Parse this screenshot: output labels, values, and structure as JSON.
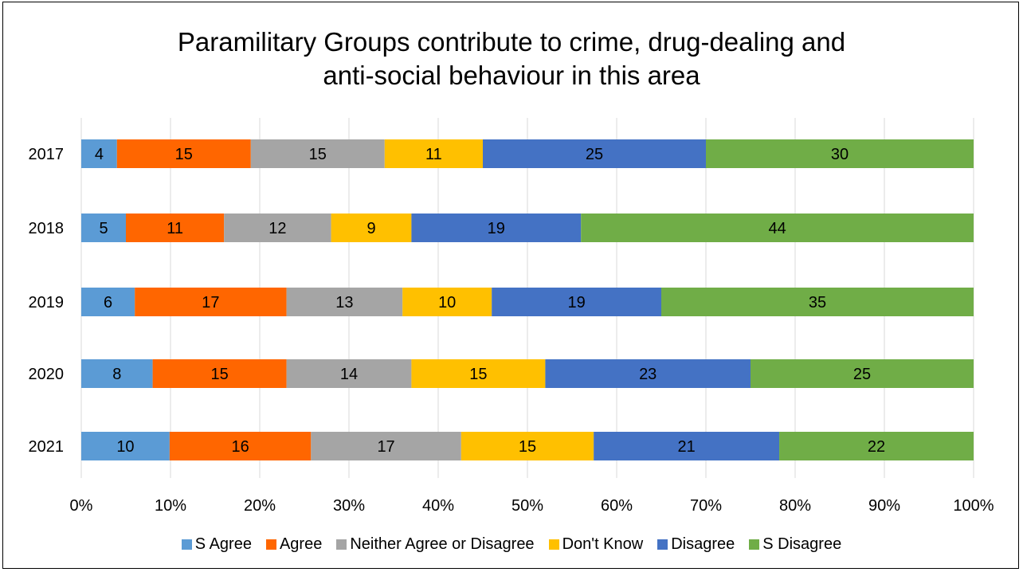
{
  "chart_data": {
    "type": "bar",
    "orientation": "horizontal",
    "stacked": "percent",
    "title": "Paramilitary Groups contribute to crime, drug-dealing and anti-social behaviour in this area",
    "title_lines": [
      "Paramilitary Groups contribute to crime, drug-dealing and",
      "anti-social behaviour in this area"
    ],
    "categories": [
      "2017",
      "2018",
      "2019",
      "2020",
      "2021"
    ],
    "series": [
      {
        "name": "S Agree",
        "color": "#5B9BD5",
        "values": [
          4,
          5,
          6,
          8,
          10
        ]
      },
      {
        "name": "Agree",
        "color": "#FF6600",
        "values": [
          15,
          11,
          17,
          15,
          16
        ]
      },
      {
        "name": "Neither Agree or Disagree",
        "color": "#A5A5A5",
        "values": [
          15,
          12,
          13,
          14,
          17
        ]
      },
      {
        "name": "Don't Know",
        "color": "#FFC000",
        "values": [
          11,
          9,
          10,
          15,
          15
        ]
      },
      {
        "name": "Disagree",
        "color": "#4472C4",
        "values": [
          25,
          19,
          19,
          23,
          21
        ]
      },
      {
        "name": "S Disagree",
        "color": "#70AD47",
        "values": [
          30,
          44,
          35,
          25,
          22
        ]
      }
    ],
    "x_ticks": [
      "0%",
      "10%",
      "20%",
      "30%",
      "40%",
      "50%",
      "60%",
      "70%",
      "80%",
      "90%",
      "100%"
    ],
    "xlim": [
      0,
      100
    ],
    "grid": true,
    "legend_position": "bottom"
  }
}
